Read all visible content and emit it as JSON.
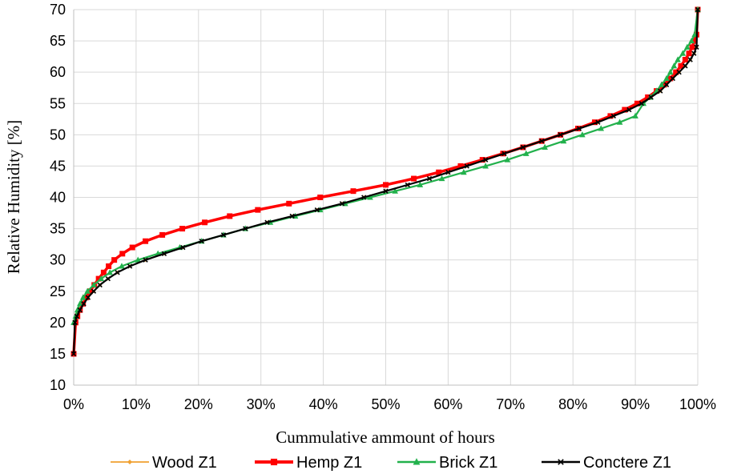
{
  "chart_data": {
    "type": "line",
    "title": "",
    "xlabel": "Cummulative ammount of hours",
    "ylabel": "Relative Humidity [%]",
    "xlim": [
      0,
      100
    ],
    "ylim": [
      10,
      70
    ],
    "xticks": [
      0,
      10,
      20,
      30,
      40,
      50,
      60,
      70,
      80,
      90,
      100
    ],
    "xtick_labels": [
      "0%",
      "10%",
      "20%",
      "30%",
      "40%",
      "50%",
      "60%",
      "70%",
      "80%",
      "90%",
      "100%"
    ],
    "yticks": [
      10,
      15,
      20,
      25,
      30,
      35,
      40,
      45,
      50,
      55,
      60,
      65,
      70
    ],
    "ytick_labels": [
      "10",
      "15",
      "20",
      "25",
      "30",
      "35",
      "40",
      "45",
      "50",
      "55",
      "60",
      "65",
      "70"
    ],
    "grid": true,
    "legend_position": "bottom",
    "series": [
      {
        "name": "Wood Z1",
        "color": "#f0a030",
        "marker": "diamond",
        "x": [
          0,
          0.2,
          0.5,
          1,
          1.6,
          2.3,
          3.2,
          4.2,
          5.5,
          7,
          9,
          11.5,
          14.5,
          17.5,
          20.5,
          24,
          27.5,
          31,
          35,
          39,
          43,
          46.5,
          50,
          53.5,
          57,
          60,
          63,
          66,
          69,
          72,
          75,
          78,
          81,
          84,
          86.5,
          89,
          91,
          92.5,
          94,
          95,
          96,
          97,
          98,
          98.8,
          99.4,
          99.8,
          100
        ],
        "y": [
          15,
          20,
          21,
          22,
          23,
          24,
          25,
          26,
          27,
          28,
          29,
          30,
          31,
          32,
          33,
          34,
          35,
          36,
          37,
          38,
          39,
          40,
          41,
          42,
          43,
          44,
          45,
          46,
          47,
          48,
          49,
          50,
          51,
          52,
          53,
          54,
          55,
          56,
          57,
          58,
          59,
          60,
          61,
          62,
          63,
          64,
          70
        ]
      },
      {
        "name": "Hemp  Z1",
        "color": "#ff0000",
        "marker": "square",
        "x": [
          0,
          0.3,
          0.6,
          1,
          1.5,
          2,
          2.6,
          3.3,
          4,
          4.8,
          5.6,
          6.5,
          7.8,
          9.4,
          11.5,
          14.2,
          17.4,
          21,
          25,
          29.5,
          34.5,
          39.5,
          44.8,
          50,
          54.5,
          58.5,
          62,
          65.5,
          68.8,
          72,
          75,
          78,
          80.8,
          83.5,
          86,
          88.3,
          90.3,
          92,
          93.4,
          94.6,
          95.6,
          96.5,
          97.3,
          98,
          98.6,
          99.1,
          99.5,
          99.8,
          100
        ],
        "y": [
          15,
          20,
          21,
          22,
          23,
          24,
          25,
          26,
          27,
          28,
          29,
          30,
          31,
          32,
          33,
          34,
          35,
          36,
          37,
          38,
          39,
          40,
          41,
          42,
          43,
          44,
          45,
          46,
          47,
          48,
          49,
          50,
          51,
          52,
          53,
          54,
          55,
          56,
          57,
          58,
          59,
          60,
          61,
          62,
          63,
          64,
          65,
          66,
          70
        ]
      },
      {
        "name": "Brick Z1",
        "color": "#22b14c",
        "marker": "triangle",
        "x": [
          0,
          0.3,
          0.6,
          1,
          1.5,
          2.2,
          3.2,
          4.4,
          5.8,
          7.7,
          10.3,
          13.5,
          17,
          20.5,
          24,
          27.5,
          31.5,
          35.5,
          39.5,
          43.5,
          47.5,
          51.5,
          55.5,
          59,
          62.5,
          66,
          69.5,
          72.5,
          75.5,
          78.5,
          81.5,
          84.5,
          87.5,
          90,
          91.3,
          92.4,
          93.4,
          94.2,
          95,
          95.6,
          96.2,
          96.8,
          97.6,
          98.3,
          99,
          99.5,
          100
        ],
        "y": [
          20,
          21,
          22,
          23,
          24,
          25,
          26,
          27,
          28,
          29,
          30,
          31,
          32,
          33,
          34,
          35,
          36,
          37,
          38,
          39,
          40,
          41,
          42,
          43,
          44,
          45,
          46,
          47,
          48,
          49,
          50,
          51,
          52,
          53,
          55,
          56,
          57,
          58,
          59,
          60,
          61,
          62,
          63,
          64,
          65,
          66,
          70
        ]
      },
      {
        "name": "Conctere Z1",
        "color": "#000000",
        "marker": "x",
        "x": [
          0,
          0.2,
          0.5,
          1,
          1.6,
          2.3,
          3.2,
          4.2,
          5.5,
          7,
          9,
          11.5,
          14.5,
          17.5,
          20.5,
          24,
          27.5,
          31,
          35,
          39,
          43,
          46.5,
          50,
          53.5,
          57,
          60,
          63,
          66,
          69,
          72,
          75,
          78,
          81,
          84,
          86.5,
          89,
          91,
          92.5,
          94,
          95,
          96,
          97,
          98,
          98.8,
          99.4,
          99.8,
          100
        ],
        "y": [
          15,
          20,
          21,
          22,
          23,
          24,
          25,
          26,
          27,
          28,
          29,
          30,
          31,
          32,
          33,
          34,
          35,
          36,
          37,
          38,
          39,
          40,
          41,
          42,
          43,
          44,
          45,
          46,
          47,
          48,
          49,
          50,
          51,
          52,
          53,
          54,
          55,
          56,
          57,
          58,
          59,
          60,
          61,
          62,
          63,
          64,
          70
        ]
      }
    ]
  }
}
